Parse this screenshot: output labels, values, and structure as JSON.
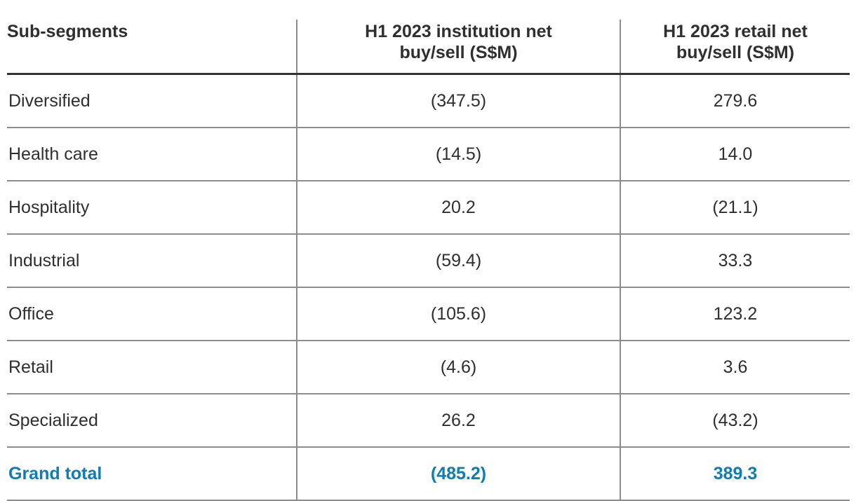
{
  "chart_data": {
    "type": "table",
    "columns": [
      "Sub-segments",
      "H1 2023 institution net buy/sell (S$M)",
      "H1 2023 retail net buy/sell (S$M)"
    ],
    "rows": [
      [
        "Diversified",
        "(347.5)",
        "279.6"
      ],
      [
        "Health care",
        "(14.5)",
        "14.0"
      ],
      [
        "Hospitality",
        "20.2",
        "(21.1)"
      ],
      [
        "Industrial",
        "(59.4)",
        "33.3"
      ],
      [
        "Office",
        "(105.6)",
        "123.2"
      ],
      [
        "Retail",
        "(4.6)",
        "3.6"
      ],
      [
        "Specialized",
        "26.2",
        "(43.2)"
      ]
    ],
    "total_row": [
      "Grand total",
      "(485.2)",
      "389.3"
    ],
    "categories": [
      "Diversified",
      "Health care",
      "Hospitality",
      "Industrial",
      "Office",
      "Retail",
      "Specialized"
    ],
    "series": [
      {
        "name": "H1 2023 institution net buy/sell (S$M)",
        "values": [
          -347.5,
          -14.5,
          20.2,
          -59.4,
          -105.6,
          -4.6,
          26.2
        ],
        "total": -485.2
      },
      {
        "name": "H1 2023 retail net buy/sell (S$M)",
        "values": [
          279.6,
          14.0,
          -21.1,
          33.3,
          123.2,
          3.6,
          -43.2
        ],
        "total": 389.3
      }
    ],
    "value_format": "parentheses indicate negative values"
  },
  "colors": {
    "text": "#2f2f2f",
    "grid_line_gray": "#8c8c8c",
    "header_rule_dark": "#333333",
    "total_accent_blue": "#0e7cb5",
    "background": "#ffffff"
  }
}
